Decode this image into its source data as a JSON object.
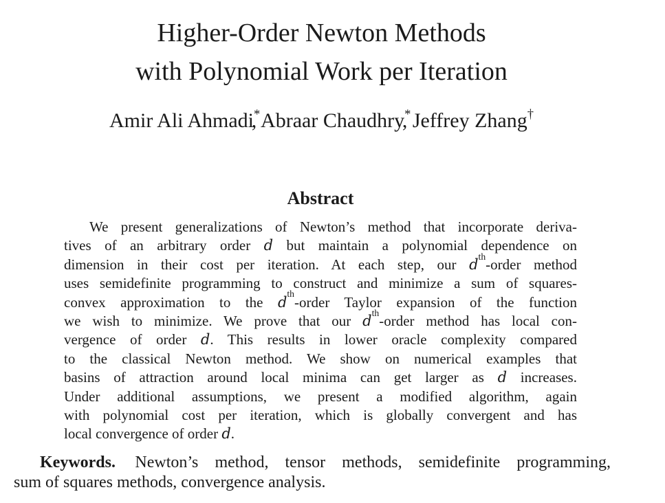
{
  "page": {
    "background_color": "#ffffff",
    "text_color": "#1b1b1b"
  },
  "paper": {
    "title": {
      "line1": "Higher-Order Newton Methods",
      "line2": "with Polynomial Work per Iteration"
    },
    "authors": [
      {
        "name": "Amir Ali Ahmadi",
        "mark": "*",
        "comma": true
      },
      {
        "name": "Abraar Chaudhry",
        "mark": "*",
        "comma": true
      },
      {
        "name": "Jeffrey Zhang",
        "mark": "†",
        "comma": false
      }
    ],
    "abstract": {
      "heading": "Abstract",
      "lines": [
        [
          {
            "t": "We present generalizations of Newton’s method that incorporate deriva-"
          }
        ],
        [
          {
            "t": "tives of an arbitrary order "
          },
          {
            "t": "d",
            "s": "i"
          },
          {
            "t": " but maintain a polynomial dependence on"
          }
        ],
        [
          {
            "t": "dimension in their cost per iteration. At each step, our "
          },
          {
            "t": "d",
            "s": "i"
          },
          {
            "t": "th",
            "s": "sup"
          },
          {
            "t": "-order method"
          }
        ],
        [
          {
            "t": "uses semidefinite programming to construct and minimize a sum of squares-"
          }
        ],
        [
          {
            "t": "convex approximation to the "
          },
          {
            "t": "d",
            "s": "i"
          },
          {
            "t": "th",
            "s": "sup"
          },
          {
            "t": "-order Taylor expansion of the function"
          }
        ],
        [
          {
            "t": "we wish to minimize. We prove that our "
          },
          {
            "t": "d",
            "s": "i"
          },
          {
            "t": "th",
            "s": "sup"
          },
          {
            "t": "-order method has local con-"
          }
        ],
        [
          {
            "t": "vergence of order "
          },
          {
            "t": "d",
            "s": "i"
          },
          {
            "t": ". This results in lower oracle complexity compared"
          }
        ],
        [
          {
            "t": "to the classical Newton method. We show on numerical examples that"
          }
        ],
        [
          {
            "t": "basins of attraction around local minima can get larger as "
          },
          {
            "t": "d",
            "s": "i"
          },
          {
            "t": " increases."
          }
        ],
        [
          {
            "t": "Under additional assumptions, we present a modified algorithm, again"
          }
        ],
        [
          {
            "t": "with polynomial cost per iteration, which is globally convergent and has"
          }
        ],
        [
          {
            "t": "local convergence of order "
          },
          {
            "t": "d",
            "s": "i"
          },
          {
            "t": "."
          }
        ]
      ]
    },
    "keywords": {
      "lines": [
        [
          {
            "t": "Keywords.",
            "s": "b"
          },
          {
            "t": " Newton’s method, tensor methods, semidefinite programming,"
          }
        ],
        [
          {
            "t": "sum of squares methods, convergence analysis."
          }
        ]
      ]
    }
  }
}
